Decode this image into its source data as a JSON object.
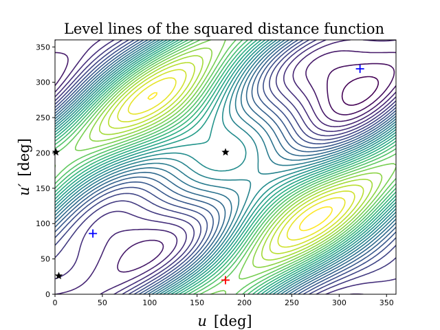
{
  "chart_data": {
    "type": "contour",
    "title": "Level lines of the squared distance function",
    "xlabel": {
      "var": "u",
      "unit": "[deg]"
    },
    "ylabel": {
      "var": "u′",
      "unit": "[deg]"
    },
    "xlim": [
      0,
      360
    ],
    "ylim": [
      0,
      360
    ],
    "xticks": [
      0,
      50,
      100,
      150,
      200,
      250,
      300,
      350
    ],
    "yticks": [
      0,
      50,
      100,
      150,
      200,
      250,
      300,
      350
    ],
    "grid": false,
    "colormap": "viridis",
    "markers": [
      {
        "kind": "maximum",
        "symbol": "plus",
        "color": "#ff0000",
        "x": 180,
        "y": 20
      },
      {
        "kind": "minimum",
        "symbol": "plus",
        "color": "#0000ff",
        "x": 40,
        "y": 86
      },
      {
        "kind": "minimum",
        "symbol": "plus",
        "color": "#0000ff",
        "x": 322,
        "y": 319
      },
      {
        "kind": "saddle",
        "symbol": "star",
        "color": "#000000",
        "x": 180,
        "y": 201
      },
      {
        "kind": "saddle",
        "symbol": "star",
        "color": "#000000",
        "x": 1,
        "y": 201
      },
      {
        "kind": "saddle",
        "symbol": "star",
        "color": "#000000",
        "x": 4,
        "y": 26
      }
    ]
  }
}
